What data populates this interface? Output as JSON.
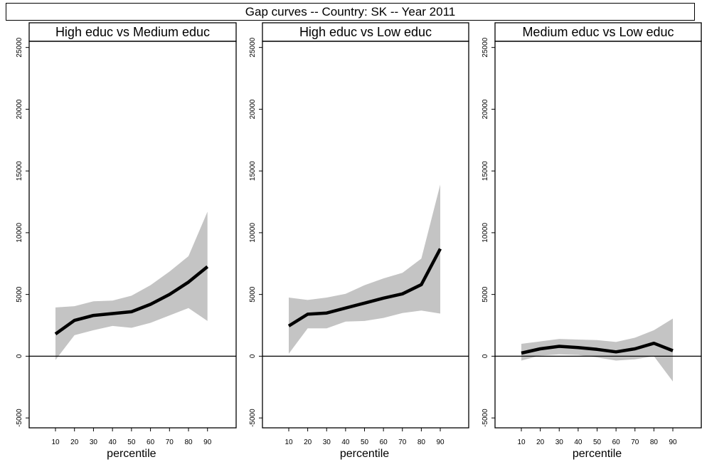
{
  "title": "Gap curves -- Country: SK -- Year 2011",
  "chart_data": [
    {
      "type": "line",
      "title": "High educ vs Medium educ",
      "xlabel": "percentile",
      "ylabel": "",
      "x": [
        10,
        20,
        30,
        40,
        50,
        60,
        70,
        80,
        90
      ],
      "xlim": [
        0,
        100
      ],
      "ylim": [
        -5800,
        25500
      ],
      "yticks": [
        -5000,
        0,
        5000,
        10000,
        15000,
        20000,
        25000
      ],
      "reference_line": 0,
      "series": [
        {
          "values": [
            1800,
            2900,
            3300,
            3450,
            3600,
            4200,
            5000,
            6000,
            7250
          ]
        }
      ],
      "band_lower": [
        -300,
        1700,
        2100,
        2450,
        2300,
        2700,
        3300,
        3900,
        2850
      ],
      "band_upper": [
        3950,
        4050,
        4450,
        4500,
        4900,
        5750,
        6850,
        8100,
        11700
      ],
      "line_color": "#000000",
      "band_color": "#c4c4c4"
    },
    {
      "type": "line",
      "title": "High educ vs Low educ",
      "xlabel": "percentile",
      "ylabel": "",
      "x": [
        10,
        20,
        30,
        40,
        50,
        60,
        70,
        80,
        90
      ],
      "xlim": [
        0,
        100
      ],
      "ylim": [
        -5800,
        25500
      ],
      "yticks": [
        -5000,
        0,
        5000,
        10000,
        15000,
        20000,
        25000
      ],
      "reference_line": 0,
      "series": [
        {
          "values": [
            2450,
            3400,
            3500,
            3900,
            4300,
            4700,
            5050,
            5800,
            8700
          ]
        }
      ],
      "band_lower": [
        200,
        2250,
        2250,
        2800,
        2850,
        3100,
        3500,
        3700,
        3450
      ],
      "band_upper": [
        4750,
        4550,
        4750,
        5050,
        5750,
        6300,
        6750,
        7900,
        13900
      ],
      "line_color": "#000000",
      "band_color": "#c4c4c4"
    },
    {
      "type": "line",
      "title": "Medium educ vs Low educ",
      "xlabel": "percentile",
      "ylabel": "",
      "x": [
        10,
        20,
        30,
        40,
        50,
        60,
        70,
        80,
        90
      ],
      "xlim": [
        0,
        100
      ],
      "ylim": [
        -5800,
        25500
      ],
      "yticks": [
        -5000,
        0,
        5000,
        10000,
        15000,
        20000,
        25000
      ],
      "reference_line": 0,
      "series": [
        {
          "values": [
            250,
            600,
            800,
            700,
            550,
            350,
            600,
            1050,
            450
          ]
        }
      ],
      "band_lower": [
        -350,
        50,
        150,
        100,
        -100,
        -350,
        -250,
        0,
        -2050
      ],
      "band_upper": [
        1000,
        1200,
        1400,
        1350,
        1300,
        1150,
        1500,
        2100,
        3050
      ],
      "line_color": "#000000",
      "band_color": "#c4c4c4"
    }
  ]
}
